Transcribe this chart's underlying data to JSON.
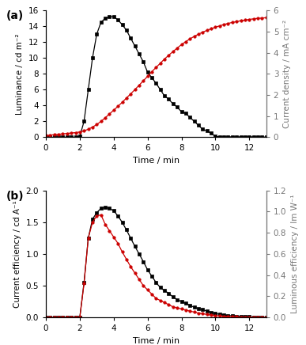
{
  "panel_a": {
    "title": "(a)",
    "xlabel": "Time / min",
    "ylabel_left": "Luminance / cd m⁻²",
    "ylabel_right": "Current density / mA cm⁻²",
    "xlim": [
      0,
      13
    ],
    "ylim_left": [
      0,
      16
    ],
    "ylim_right": [
      0,
      6
    ],
    "yticks_left": [
      0,
      2,
      4,
      6,
      8,
      10,
      12,
      14,
      16
    ],
    "yticks_right": [
      0,
      1,
      2,
      3,
      4,
      5,
      6
    ],
    "xticks": [
      0,
      2,
      4,
      6,
      8,
      10,
      12
    ],
    "luminance_time": [
      0,
      0.25,
      0.5,
      0.75,
      1.0,
      1.25,
      1.5,
      1.75,
      2.0,
      2.25,
      2.5,
      2.75,
      3.0,
      3.25,
      3.5,
      3.75,
      4.0,
      4.25,
      4.5,
      4.75,
      5.0,
      5.25,
      5.5,
      5.75,
      6.0,
      6.25,
      6.5,
      6.75,
      7.0,
      7.25,
      7.5,
      7.75,
      8.0,
      8.25,
      8.5,
      8.75,
      9.0,
      9.25,
      9.5,
      9.75,
      10.0,
      10.25,
      10.5,
      10.75,
      11.0,
      11.25,
      11.5,
      11.75,
      12.0,
      12.25,
      12.5,
      12.75,
      13.0
    ],
    "luminance_values": [
      0,
      0,
      0,
      0,
      0,
      0,
      0,
      0,
      0.1,
      2.0,
      6.0,
      10.0,
      13.0,
      14.5,
      15.0,
      15.2,
      15.2,
      14.8,
      14.2,
      13.5,
      12.5,
      11.5,
      10.5,
      9.5,
      8.2,
      7.5,
      6.8,
      6.0,
      5.2,
      4.8,
      4.2,
      3.8,
      3.2,
      3.0,
      2.5,
      2.0,
      1.5,
      1.0,
      0.8,
      0.5,
      0.1,
      0.05,
      0.05,
      0.05,
      0.05,
      0.05,
      0.05,
      0.05,
      0.05,
      0.05,
      0.05,
      0.05,
      0.0
    ],
    "current_density_time": [
      0,
      0.25,
      0.5,
      0.75,
      1.0,
      1.25,
      1.5,
      1.75,
      2.0,
      2.25,
      2.5,
      2.75,
      3.0,
      3.25,
      3.5,
      3.75,
      4.0,
      4.25,
      4.5,
      4.75,
      5.0,
      5.25,
      5.5,
      5.75,
      6.0,
      6.25,
      6.5,
      6.75,
      7.0,
      7.25,
      7.5,
      7.75,
      8.0,
      8.25,
      8.5,
      8.75,
      9.0,
      9.25,
      9.5,
      9.75,
      10.0,
      10.25,
      10.5,
      10.75,
      11.0,
      11.25,
      11.5,
      11.75,
      12.0,
      12.25,
      12.5,
      12.75,
      13.0
    ],
    "current_density_values": [
      0.08,
      0.1,
      0.12,
      0.14,
      0.16,
      0.18,
      0.2,
      0.22,
      0.25,
      0.3,
      0.38,
      0.48,
      0.6,
      0.75,
      0.92,
      1.1,
      1.28,
      1.46,
      1.65,
      1.85,
      2.05,
      2.25,
      2.46,
      2.67,
      2.88,
      3.1,
      3.3,
      3.5,
      3.7,
      3.88,
      4.05,
      4.22,
      4.38,
      4.52,
      4.65,
      4.77,
      4.87,
      4.97,
      5.05,
      5.13,
      5.2,
      5.27,
      5.33,
      5.38,
      5.43,
      5.47,
      5.51,
      5.54,
      5.57,
      5.6,
      5.62,
      5.64,
      5.65
    ],
    "black_color": "#000000",
    "red_color": "#cc0000"
  },
  "panel_b": {
    "title": "(b)",
    "xlabel": "Time / min",
    "ylabel_left": "Current efficiency / cd A⁻¹",
    "ylabel_right": "Luminous efficiency / lm W⁻¹",
    "xlim": [
      0,
      13
    ],
    "ylim_left": [
      0,
      2.0
    ],
    "ylim_right": [
      0,
      1.2
    ],
    "yticks_left": [
      0.0,
      0.5,
      1.0,
      1.5,
      2.0
    ],
    "yticks_right": [
      0.0,
      0.2,
      0.4,
      0.6,
      0.8,
      1.0,
      1.2
    ],
    "xticks": [
      0,
      2,
      4,
      6,
      8,
      10,
      12
    ],
    "current_eff_time": [
      0,
      0.25,
      0.5,
      0.75,
      1.0,
      1.25,
      1.5,
      1.75,
      2.0,
      2.25,
      2.5,
      2.75,
      3.0,
      3.25,
      3.5,
      3.75,
      4.0,
      4.25,
      4.5,
      4.75,
      5.0,
      5.25,
      5.5,
      5.75,
      6.0,
      6.25,
      6.5,
      6.75,
      7.0,
      7.25,
      7.5,
      7.75,
      8.0,
      8.25,
      8.5,
      8.75,
      9.0,
      9.25,
      9.5,
      9.75,
      10.0,
      10.25,
      10.5,
      10.75,
      11.0,
      11.25,
      11.5,
      11.75,
      12.0,
      12.25,
      12.5,
      12.75,
      13.0
    ],
    "current_eff_values": [
      0,
      0,
      0,
      0,
      0,
      0,
      0,
      0,
      0.0,
      0.55,
      1.25,
      1.55,
      1.65,
      1.72,
      1.73,
      1.72,
      1.68,
      1.6,
      1.5,
      1.38,
      1.25,
      1.12,
      1.0,
      0.88,
      0.75,
      0.65,
      0.55,
      0.47,
      0.42,
      0.38,
      0.32,
      0.28,
      0.25,
      0.22,
      0.19,
      0.16,
      0.14,
      0.12,
      0.1,
      0.08,
      0.06,
      0.05,
      0.04,
      0.03,
      0.025,
      0.02,
      0.015,
      0.01,
      0.008,
      0.005,
      0.003,
      0.002,
      0.0
    ],
    "lum_eff_time": [
      0,
      0.25,
      0.5,
      0.75,
      1.0,
      1.25,
      1.5,
      1.75,
      2.0,
      2.25,
      2.5,
      2.75,
      3.0,
      3.25,
      3.5,
      3.75,
      4.0,
      4.25,
      4.5,
      4.75,
      5.0,
      5.25,
      5.5,
      5.75,
      6.0,
      6.25,
      6.5,
      6.75,
      7.0,
      7.25,
      7.5,
      7.75,
      8.0,
      8.25,
      8.5,
      8.75,
      9.0,
      9.25,
      9.5,
      9.75,
      10.0,
      10.25,
      10.5,
      10.75,
      11.0,
      11.25,
      11.5,
      11.75,
      12.0,
      12.25,
      12.5,
      12.75,
      13.0
    ],
    "lum_eff_values": [
      0,
      0,
      0,
      0,
      0,
      0,
      0,
      0,
      0.0,
      0.32,
      0.75,
      0.9,
      0.96,
      0.97,
      0.88,
      0.82,
      0.76,
      0.7,
      0.62,
      0.55,
      0.48,
      0.42,
      0.36,
      0.3,
      0.26,
      0.22,
      0.18,
      0.16,
      0.14,
      0.12,
      0.1,
      0.09,
      0.08,
      0.07,
      0.06,
      0.05,
      0.04,
      0.035,
      0.028,
      0.022,
      0.018,
      0.014,
      0.011,
      0.009,
      0.007,
      0.005,
      0.004,
      0.003,
      0.002,
      0.0015,
      0.001,
      0.0005,
      0.0
    ],
    "black_color": "#000000",
    "red_color": "#cc0000"
  }
}
